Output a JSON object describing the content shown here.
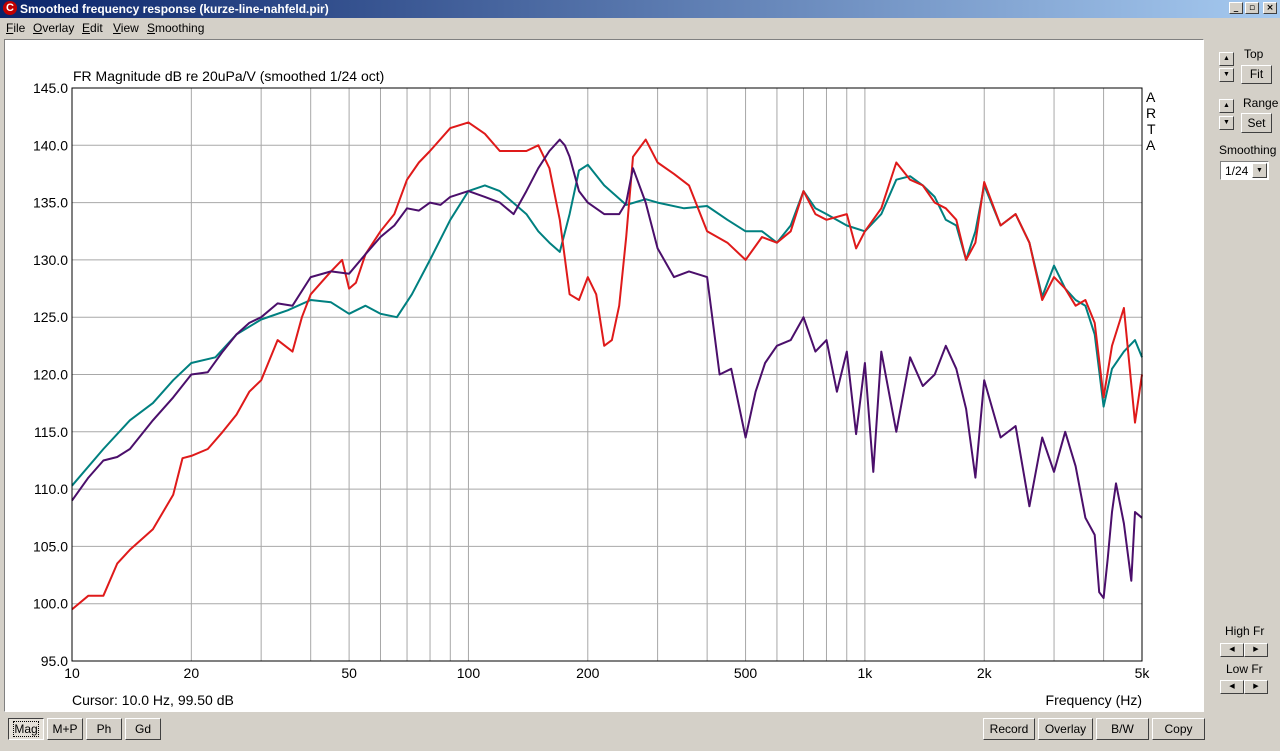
{
  "window": {
    "title": "Smoothed frequency response (kurze-line-nahfeld.pir)",
    "app_icon": "arta-app-icon",
    "controls": [
      "_",
      "▫",
      "×"
    ]
  },
  "menu": [
    "File",
    "Overlay",
    "Edit",
    "View",
    "Smoothing"
  ],
  "plot": {
    "title": "FR Magnitude dB re 20uPa/V (smoothed 1/24 oct)",
    "watermark": [
      "A",
      "R",
      "T",
      "A"
    ],
    "cursor_text": "Cursor: 10.0 Hz, 99.50 dB",
    "xlabel": "Frequency (Hz)"
  },
  "right_panel": {
    "top_label": "Top",
    "fit_label": "Fit",
    "range_label": "Range",
    "set_label": "Set",
    "smoothing_label": "Smoothing",
    "smoothing_value": "1/24",
    "high_fr_label": "High Fr",
    "low_fr_label": "Low Fr"
  },
  "bottom_left": [
    "Mag",
    "M+P",
    "Ph",
    "Gd"
  ],
  "bottom_right": [
    "Record",
    "Overlay",
    "B/W",
    "Copy"
  ],
  "chart_data": {
    "type": "line",
    "x_scale": "log",
    "xlim": [
      10,
      5000
    ],
    "ylim": [
      95,
      145
    ],
    "grid": true,
    "x_ticks": [
      10,
      20,
      50,
      100,
      200,
      500,
      1000,
      2000,
      5000
    ],
    "x_tick_labels": [
      "10",
      "20",
      "50",
      "100",
      "200",
      "500",
      "1k",
      "2k",
      "5k"
    ],
    "y_ticks": [
      95,
      100,
      105,
      110,
      115,
      120,
      125,
      130,
      135,
      140,
      145
    ],
    "y_tick_labels": [
      "95.0",
      "100.0",
      "105.0",
      "110.0",
      "115.0",
      "120.0",
      "125.0",
      "130.0",
      "135.0",
      "140.0",
      "145.0"
    ],
    "series": [
      {
        "color": "#008080",
        "x": [
          10,
          12,
          14,
          16,
          18,
          20,
          23,
          26,
          30,
          35,
          40,
          45,
          50,
          55,
          60,
          66,
          72,
          80,
          90,
          100,
          110,
          120,
          140,
          150,
          160,
          170,
          180,
          190,
          200,
          220,
          250,
          280,
          300,
          350,
          400,
          450,
          500,
          550,
          600,
          650,
          700,
          750,
          800,
          900,
          1000,
          1100,
          1200,
          1300,
          1400,
          1500,
          1600,
          1700,
          1800,
          1900,
          2000,
          2200,
          2400,
          2600,
          2800,
          3000,
          3200,
          3400,
          3600,
          3800,
          4000,
          4200,
          4500,
          4800,
          5000
        ],
        "y": [
          110.3,
          113.5,
          116.0,
          117.5,
          119.5,
          121.0,
          121.5,
          123.5,
          124.8,
          125.6,
          126.5,
          126.3,
          125.3,
          126.0,
          125.3,
          125.0,
          127.0,
          130.0,
          133.5,
          136.0,
          136.5,
          136.0,
          134.0,
          132.5,
          131.5,
          130.7,
          134.0,
          137.8,
          138.3,
          136.5,
          134.8,
          135.3,
          135.0,
          134.5,
          134.7,
          133.5,
          132.5,
          132.5,
          131.5,
          133.0,
          136.0,
          134.5,
          134.0,
          133.0,
          132.5,
          134.0,
          137.0,
          137.3,
          136.5,
          135.5,
          133.5,
          133.0,
          130.0,
          132.5,
          136.5,
          133.0,
          134.0,
          131.5,
          126.8,
          129.5,
          127.5,
          126.5,
          126.0,
          123.5,
          117.2,
          120.5,
          122.0,
          123.0,
          121.5
        ]
      },
      {
        "color": "#df1a1a",
        "x": [
          10,
          11,
          12,
          13,
          14,
          16,
          18,
          19,
          20,
          22,
          24,
          26,
          28,
          30,
          33,
          36,
          38,
          40,
          45,
          48,
          50,
          52,
          55,
          60,
          65,
          70,
          75,
          80,
          90,
          100,
          110,
          120,
          130,
          140,
          150,
          160,
          170,
          180,
          190,
          200,
          210,
          220,
          230,
          240,
          250,
          260,
          280,
          300,
          330,
          360,
          400,
          450,
          500,
          550,
          600,
          650,
          700,
          750,
          800,
          900,
          950,
          1000,
          1100,
          1200,
          1300,
          1400,
          1500,
          1600,
          1700,
          1800,
          1900,
          2000,
          2200,
          2400,
          2600,
          2800,
          3000,
          3200,
          3400,
          3600,
          3800,
          4000,
          4200,
          4500,
          4800,
          5000
        ],
        "y": [
          99.5,
          100.7,
          100.7,
          103.5,
          104.7,
          106.5,
          109.5,
          112.7,
          112.9,
          113.5,
          115.0,
          116.5,
          118.5,
          119.5,
          123.0,
          122.0,
          125.0,
          127.0,
          129.0,
          130.0,
          127.5,
          128.0,
          130.5,
          132.5,
          134.0,
          137.0,
          138.5,
          139.5,
          141.5,
          142.0,
          141.0,
          139.5,
          139.5,
          139.5,
          140.0,
          138.0,
          133.5,
          127.0,
          126.5,
          128.5,
          127.0,
          122.5,
          123.0,
          126.0,
          132.0,
          139.0,
          140.5,
          138.5,
          137.5,
          136.5,
          132.5,
          131.5,
          130.0,
          132.0,
          131.5,
          132.5,
          136.0,
          134.0,
          133.5,
          134.0,
          131.0,
          132.5,
          134.5,
          138.5,
          137.0,
          136.5,
          135.0,
          134.5,
          133.5,
          130.0,
          131.5,
          136.8,
          133.0,
          134.0,
          131.5,
          126.5,
          128.5,
          127.5,
          126.0,
          126.5,
          124.5,
          118.0,
          122.5,
          125.8,
          115.8,
          120.0
        ]
      },
      {
        "color": "#4b0f6b",
        "x": [
          10,
          11,
          12,
          13,
          14,
          16,
          18,
          20,
          22,
          24,
          26,
          28,
          30,
          33,
          36,
          40,
          45,
          50,
          55,
          60,
          65,
          70,
          75,
          80,
          85,
          90,
          100,
          110,
          120,
          130,
          140,
          150,
          160,
          170,
          175,
          180,
          190,
          200,
          220,
          240,
          250,
          260,
          280,
          300,
          330,
          360,
          400,
          430,
          460,
          500,
          530,
          560,
          600,
          650,
          700,
          750,
          800,
          850,
          900,
          950,
          1000,
          1050,
          1100,
          1200,
          1300,
          1400,
          1500,
          1600,
          1700,
          1800,
          1900,
          2000,
          2200,
          2400,
          2600,
          2800,
          3000,
          3200,
          3400,
          3600,
          3800,
          3900,
          4000,
          4100,
          4200,
          4300,
          4500,
          4700,
          4800,
          5000
        ],
        "y": [
          109.0,
          111.0,
          112.5,
          112.8,
          113.5,
          116.0,
          118.0,
          120.0,
          120.2,
          122.0,
          123.5,
          124.5,
          125.0,
          126.2,
          126.0,
          128.5,
          129.0,
          128.8,
          130.5,
          132.0,
          133.0,
          134.5,
          134.3,
          135.0,
          134.8,
          135.5,
          136.0,
          135.5,
          135.0,
          134.0,
          136.0,
          138.0,
          139.5,
          140.5,
          140.0,
          139.0,
          136.0,
          135.0,
          134.0,
          134.0,
          135.0,
          138.0,
          135.0,
          131.0,
          128.5,
          129.0,
          128.5,
          120.0,
          120.5,
          114.5,
          118.5,
          121.0,
          122.5,
          123.0,
          125.0,
          122.0,
          123.0,
          118.5,
          122.0,
          114.8,
          121.0,
          111.5,
          122.0,
          115.0,
          121.5,
          119.0,
          120.0,
          122.5,
          120.5,
          117.0,
          111.0,
          119.5,
          114.5,
          115.5,
          108.5,
          114.5,
          111.5,
          115.0,
          112.0,
          107.5,
          106.0,
          101.0,
          100.5,
          104.0,
          108.0,
          110.5,
          107.0,
          102.0,
          108.0,
          107.5
        ]
      }
    ]
  }
}
